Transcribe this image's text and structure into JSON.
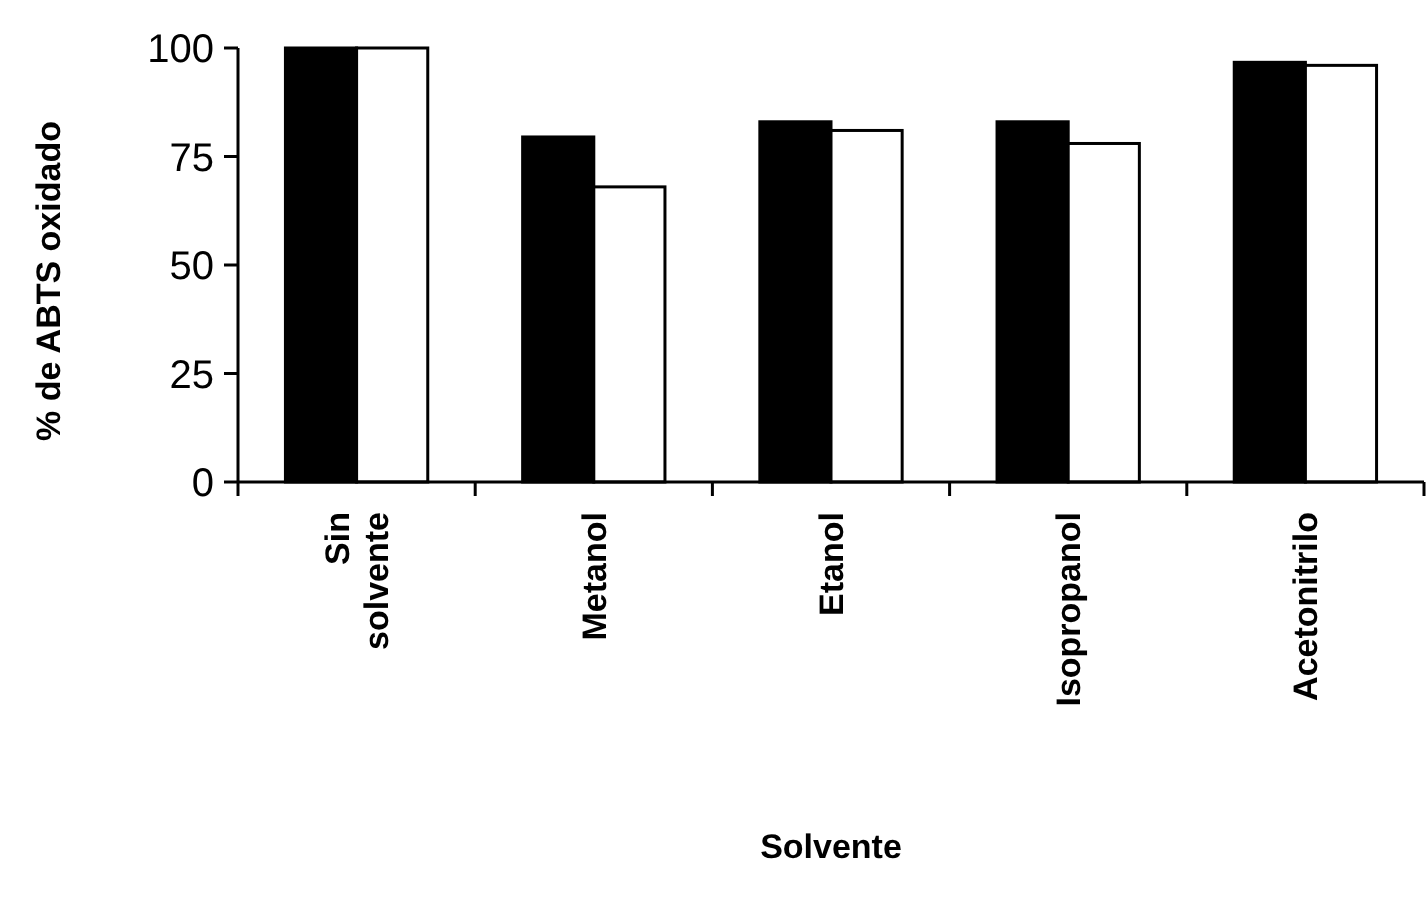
{
  "chart_data": {
    "type": "bar",
    "xlabel": "Solvente",
    "ylabel": "% de ABTS oxidado",
    "categories": [
      "Sin solvente",
      "Metanol",
      "Etanol",
      "Isopropanol",
      "Acetonitrilo"
    ],
    "series": [
      {
        "color": "#000000",
        "values": [
          100,
          79.5,
          83,
          83,
          96.7
        ]
      },
      {
        "color": "#ffffff",
        "values": [
          100,
          68,
          81,
          78,
          96
        ]
      }
    ],
    "ylim": [
      0,
      100
    ],
    "yticks": [
      0,
      25,
      50,
      75,
      100
    ],
    "grid": false
  }
}
